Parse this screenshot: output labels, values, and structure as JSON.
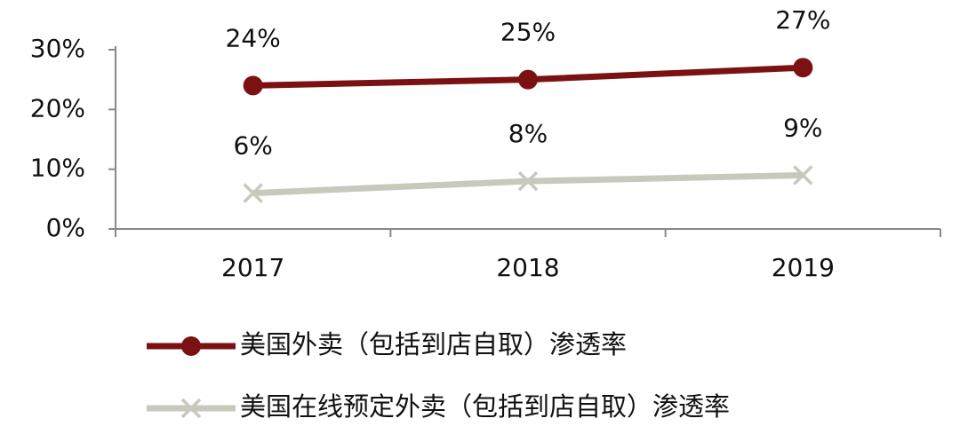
{
  "chart_data": {
    "type": "line",
    "categories": [
      "2017",
      "2018",
      "2019"
    ],
    "series": [
      {
        "name": "美国外卖（包括到店自取）渗透率",
        "color": "#7b1113",
        "marker": "circle",
        "values": [
          24,
          25,
          27
        ],
        "value_labels": [
          "24%",
          "25%",
          "27%"
        ]
      },
      {
        "name": "美国在线预定外卖（包括到店自取）渗透率",
        "color": "#c8c8bc",
        "marker": "x",
        "values": [
          6,
          8,
          9
        ],
        "value_labels": [
          "6%",
          "8%",
          "9%"
        ]
      }
    ],
    "ylim": [
      0,
      30
    ],
    "yticks": [
      {
        "value": 0,
        "label": "0%"
      },
      {
        "value": 10,
        "label": "10%"
      },
      {
        "value": 20,
        "label": "20%"
      },
      {
        "value": 30,
        "label": "30%"
      }
    ],
    "grid": false,
    "legend": "bottom"
  }
}
